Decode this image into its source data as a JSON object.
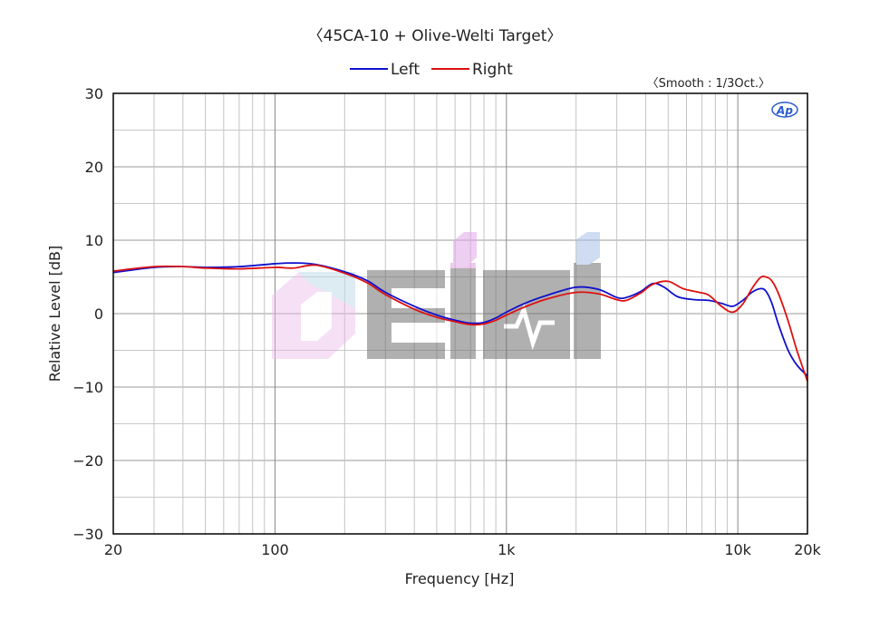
{
  "chart_data": {
    "type": "line",
    "title": "〈45CA-10 + Olive-Welti Target〉",
    "annotation": "〈Smooth : 1/3Oct.〉",
    "logo": "AP",
    "watermark": "OEIMI",
    "xlabel": "Frequency [Hz]",
    "ylabel": "Relative Level [dB]",
    "xscale": "log",
    "xlim": [
      20,
      20000
    ],
    "ylim": [
      -30,
      30
    ],
    "x_ticks": [
      {
        "value": 20,
        "label": "20"
      },
      {
        "value": 100,
        "label": "100"
      },
      {
        "value": 1000,
        "label": "1k"
      },
      {
        "value": 10000,
        "label": "10k"
      },
      {
        "value": 20000,
        "label": "20k"
      }
    ],
    "y_ticks": [
      {
        "value": 30,
        "label": "30"
      },
      {
        "value": 20,
        "label": "20"
      },
      {
        "value": 10,
        "label": "10"
      },
      {
        "value": 0,
        "label": "0"
      },
      {
        "value": -10,
        "label": "−10"
      },
      {
        "value": -20,
        "label": "−20"
      },
      {
        "value": -30,
        "label": "−30"
      }
    ],
    "grid": true,
    "legend_position": "top-center",
    "series": [
      {
        "name": "Left",
        "color": "#1010cc",
        "points": [
          [
            20,
            5.6
          ],
          [
            30,
            6.3
          ],
          [
            40,
            6.4
          ],
          [
            50,
            6.3
          ],
          [
            70,
            6.4
          ],
          [
            100,
            6.8
          ],
          [
            120,
            6.9
          ],
          [
            150,
            6.7
          ],
          [
            200,
            5.7
          ],
          [
            250,
            4.5
          ],
          [
            300,
            2.9
          ],
          [
            400,
            1.0
          ],
          [
            500,
            -0.2
          ],
          [
            600,
            -0.9
          ],
          [
            700,
            -1.3
          ],
          [
            800,
            -1.2
          ],
          [
            900,
            -0.6
          ],
          [
            1000,
            0.2
          ],
          [
            1200,
            1.4
          ],
          [
            1500,
            2.5
          ],
          [
            2000,
            3.6
          ],
          [
            2500,
            3.3
          ],
          [
            3000,
            2.2
          ],
          [
            3300,
            2.2
          ],
          [
            3800,
            3.0
          ],
          [
            4300,
            4.1
          ],
          [
            4800,
            3.6
          ],
          [
            5500,
            2.3
          ],
          [
            6500,
            1.9
          ],
          [
            7500,
            1.8
          ],
          [
            8500,
            1.4
          ],
          [
            9500,
            1.0
          ],
          [
            10500,
            1.8
          ],
          [
            11500,
            2.9
          ],
          [
            12500,
            3.4
          ],
          [
            13200,
            3.1
          ],
          [
            14000,
            1.5
          ],
          [
            15000,
            -1.5
          ],
          [
            16500,
            -5.0
          ],
          [
            18000,
            -7.0
          ],
          [
            20000,
            -8.5
          ]
        ]
      },
      {
        "name": "Right",
        "color": "#dd1111",
        "points": [
          [
            20,
            5.8
          ],
          [
            30,
            6.4
          ],
          [
            40,
            6.4
          ],
          [
            50,
            6.2
          ],
          [
            70,
            6.1
          ],
          [
            100,
            6.3
          ],
          [
            120,
            6.2
          ],
          [
            150,
            6.6
          ],
          [
            200,
            5.5
          ],
          [
            250,
            4.2
          ],
          [
            300,
            2.6
          ],
          [
            400,
            0.6
          ],
          [
            500,
            -0.5
          ],
          [
            600,
            -1.1
          ],
          [
            700,
            -1.5
          ],
          [
            800,
            -1.4
          ],
          [
            900,
            -0.9
          ],
          [
            1000,
            -0.2
          ],
          [
            1200,
            0.9
          ],
          [
            1500,
            2.0
          ],
          [
            2000,
            2.9
          ],
          [
            2500,
            2.7
          ],
          [
            3000,
            1.9
          ],
          [
            3300,
            1.8
          ],
          [
            3800,
            2.8
          ],
          [
            4300,
            4.0
          ],
          [
            5000,
            4.4
          ],
          [
            5800,
            3.4
          ],
          [
            6800,
            2.9
          ],
          [
            7500,
            2.5
          ],
          [
            8500,
            1.0
          ],
          [
            9500,
            0.2
          ],
          [
            10500,
            1.3
          ],
          [
            11500,
            3.4
          ],
          [
            12500,
            4.9
          ],
          [
            13200,
            5.0
          ],
          [
            14000,
            4.5
          ],
          [
            15000,
            2.7
          ],
          [
            16500,
            -1.0
          ],
          [
            18000,
            -5.0
          ],
          [
            20000,
            -9.2
          ]
        ]
      }
    ]
  }
}
